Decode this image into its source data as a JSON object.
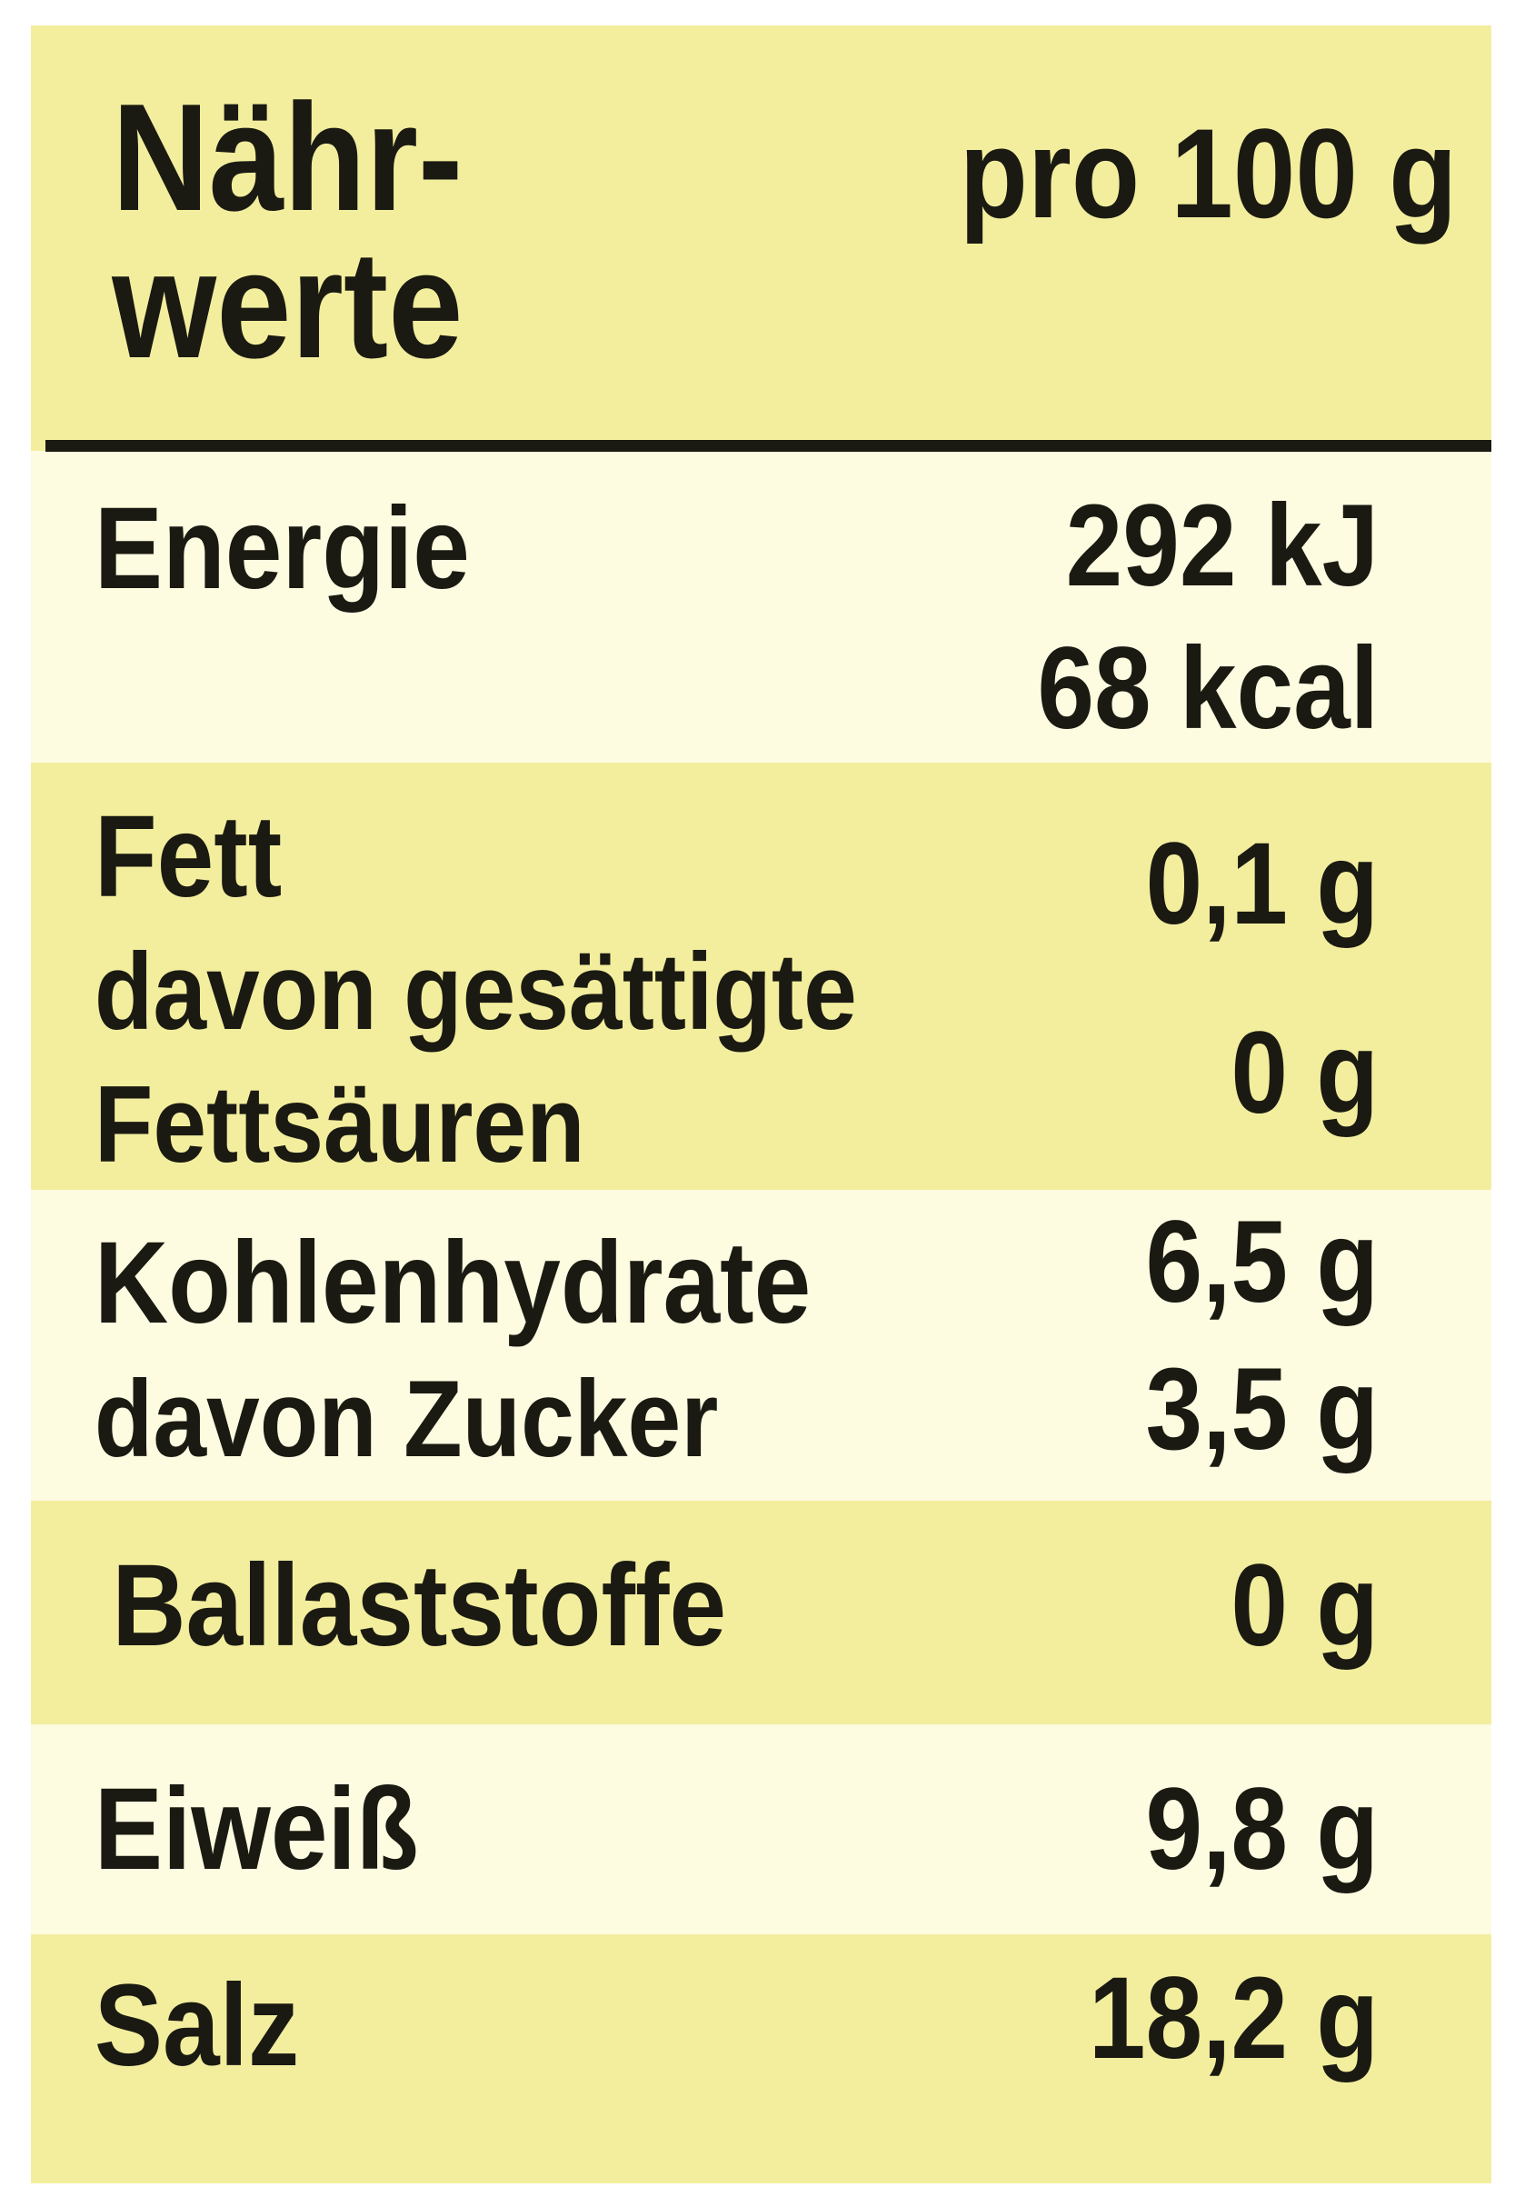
{
  "header": {
    "title_line1": "Nähr-",
    "title_line2": "werte",
    "column": "pro 100 g"
  },
  "rows": [
    {
      "labels": [
        "Energie"
      ],
      "values": [
        "292 kJ",
        "68 kcal"
      ]
    },
    {
      "labels": [
        "Fett",
        "davon gesättigte",
        "Fettsäuren"
      ],
      "values": [
        "0,1 g",
        "0 g"
      ]
    },
    {
      "labels": [
        "Kohlenhydrate",
        "davon Zucker"
      ],
      "values": [
        "6,5 g",
        "3,5 g"
      ]
    },
    {
      "labels": [
        "Ballaststoffe"
      ],
      "values": [
        "0 g"
      ]
    },
    {
      "labels": [
        "Eiweiß"
      ],
      "values": [
        "9,8 g"
      ]
    },
    {
      "labels": [
        "Salz"
      ],
      "values": [
        "18,2 g"
      ]
    }
  ]
}
